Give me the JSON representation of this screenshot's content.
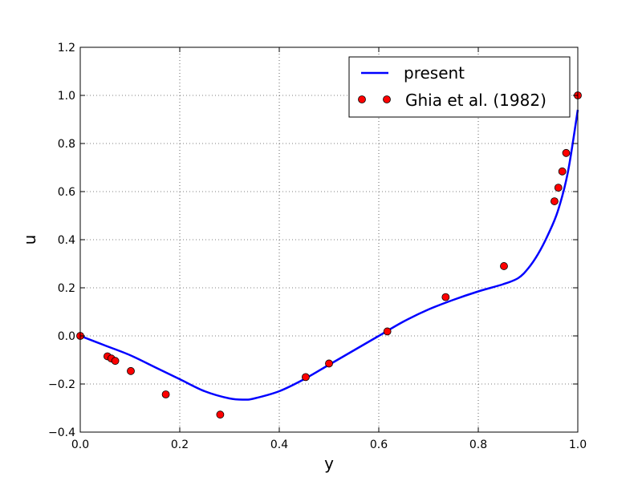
{
  "chart_data": {
    "type": "line",
    "xlabel": "y",
    "ylabel": "u",
    "xlim": [
      0.0,
      1.0
    ],
    "ylim": [
      -0.4,
      1.2
    ],
    "x_ticks": [
      0.0,
      0.2,
      0.4,
      0.6,
      0.8,
      1.0
    ],
    "y_ticks": [
      -0.4,
      -0.2,
      0.0,
      0.2,
      0.4,
      0.6,
      0.8,
      1.0,
      1.2
    ],
    "x_tick_labels": [
      "0.0",
      "0.2",
      "0.4",
      "0.6",
      "0.8",
      "1.0"
    ],
    "y_tick_labels": [
      "−0.4",
      "−0.2",
      "0.0",
      "0.2",
      "0.4",
      "0.6",
      "0.8",
      "1.0",
      "1.2"
    ],
    "grid": true,
    "legend_position": "top-right",
    "series": [
      {
        "name": "present",
        "style": "line",
        "color": "#0000ff",
        "x": [
          0.0,
          0.05,
          0.1,
          0.15,
          0.2,
          0.25,
          0.3,
          0.33,
          0.35,
          0.4,
          0.45,
          0.5,
          0.55,
          0.6,
          0.65,
          0.7,
          0.75,
          0.8,
          0.85,
          0.88,
          0.9,
          0.92,
          0.94,
          0.96,
          0.98,
          1.0
        ],
        "y": [
          0.0,
          -0.04,
          -0.08,
          -0.13,
          -0.18,
          -0.23,
          -0.26,
          -0.265,
          -0.26,
          -0.23,
          -0.18,
          -0.12,
          -0.06,
          0.0,
          0.06,
          0.11,
          0.15,
          0.185,
          0.215,
          0.24,
          0.28,
          0.34,
          0.42,
          0.52,
          0.68,
          0.94
        ]
      },
      {
        "name": "Ghia et al. (1982)",
        "style": "markers",
        "color": "#ff0000",
        "x": [
          0.0,
          0.0547,
          0.0625,
          0.0703,
          0.1016,
          0.1719,
          0.2813,
          0.4531,
          0.5,
          0.6172,
          0.7344,
          0.8516,
          0.9531,
          0.9609,
          0.9688,
          0.9766,
          1.0
        ],
        "y": [
          0.0,
          -0.0849,
          -0.0939,
          -0.1039,
          -0.1461,
          -0.2433,
          -0.3273,
          -0.1712,
          -0.1148,
          0.0186,
          0.1612,
          0.2902,
          0.5597,
          0.6163,
          0.6839,
          0.7607,
          1.0
        ]
      }
    ]
  }
}
